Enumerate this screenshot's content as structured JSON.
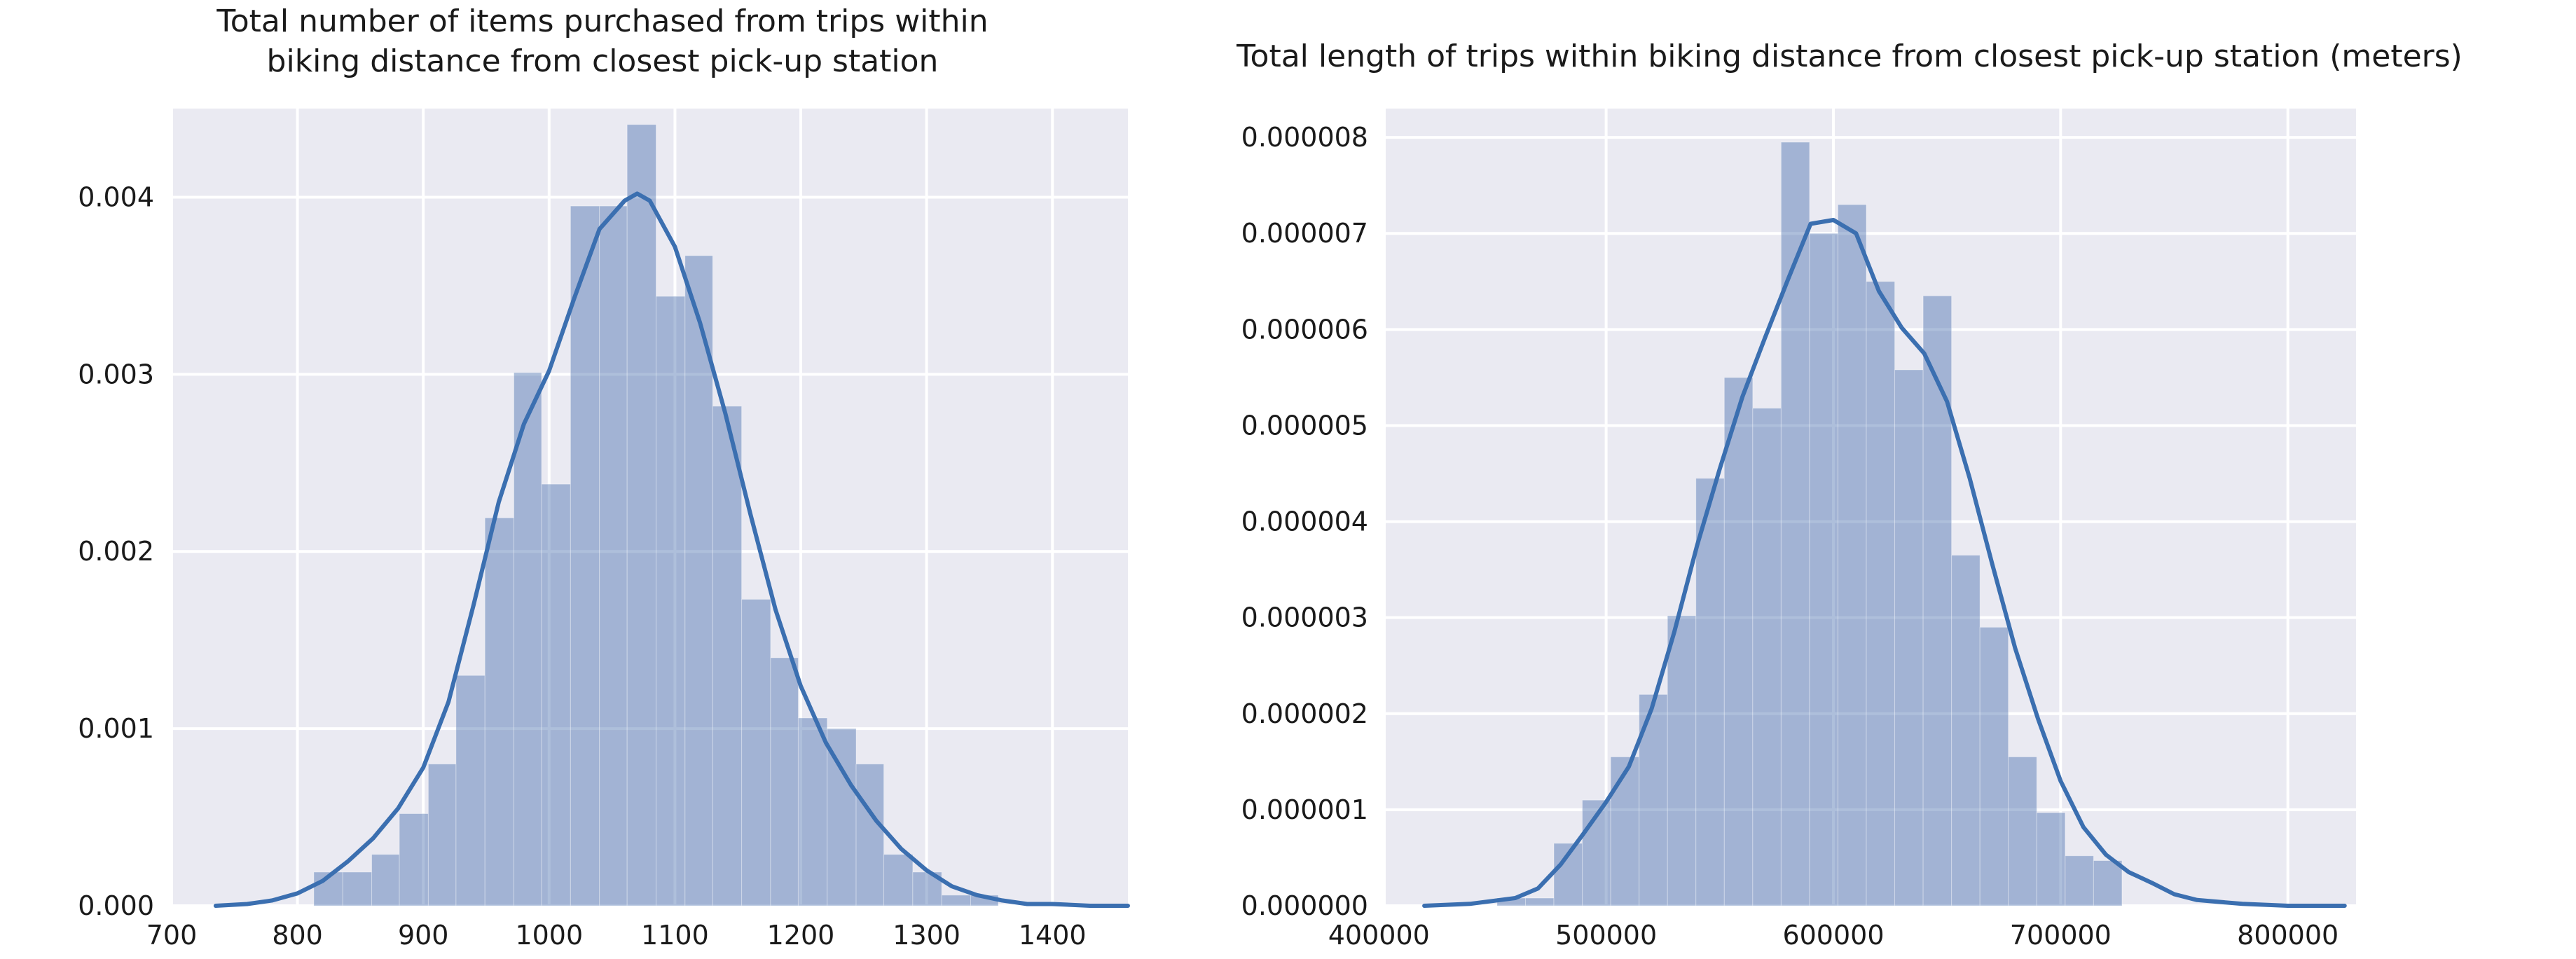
{
  "chart_data": [
    {
      "type": "histogram",
      "title": "Total number of items purchased from trips within\nbiking distance from closest pick-up station",
      "xlabel": "",
      "ylabel": "",
      "xlim": [
        700,
        1460
      ],
      "ylim": [
        0,
        0.0045
      ],
      "x_ticks": [
        700,
        800,
        900,
        1000,
        1100,
        1200,
        1300,
        1400
      ],
      "x_tick_labels": [
        "700",
        "800",
        "900",
        "1000",
        "1100",
        "1200",
        "1300",
        "1400"
      ],
      "y_ticks": [
        0,
        0.001,
        0.002,
        0.003,
        0.004
      ],
      "y_tick_labels": [
        "0.000",
        "0.001",
        "0.002",
        "0.003",
        "0.004"
      ],
      "grid": true,
      "colors": {
        "bar": "#4c72b0",
        "line": "#3b6fb0",
        "background": "#eaeaf2"
      },
      "bins": [
        {
          "x0": 813,
          "x1": 836,
          "density": 0.00019
        },
        {
          "x0": 836,
          "x1": 859,
          "density": 0.00019
        },
        {
          "x0": 859,
          "x1": 881,
          "density": 0.00029
        },
        {
          "x0": 881,
          "x1": 904,
          "density": 0.00052
        },
        {
          "x0": 904,
          "x1": 926,
          "density": 0.0008
        },
        {
          "x0": 926,
          "x1": 949,
          "density": 0.0013
        },
        {
          "x0": 949,
          "x1": 972,
          "density": 0.00219
        },
        {
          "x0": 972,
          "x1": 994,
          "density": 0.00301
        },
        {
          "x0": 994,
          "x1": 1017,
          "density": 0.00238
        },
        {
          "x0": 1017,
          "x1": 1040,
          "density": 0.00395
        },
        {
          "x0": 1040,
          "x1": 1062,
          "density": 0.00395
        },
        {
          "x0": 1062,
          "x1": 1085,
          "density": 0.00441
        },
        {
          "x0": 1085,
          "x1": 1108,
          "density": 0.00344
        },
        {
          "x0": 1108,
          "x1": 1130,
          "density": 0.00367
        },
        {
          "x0": 1130,
          "x1": 1153,
          "density": 0.00282
        },
        {
          "x0": 1153,
          "x1": 1176,
          "density": 0.00173
        },
        {
          "x0": 1176,
          "x1": 1198,
          "density": 0.0014
        },
        {
          "x0": 1198,
          "x1": 1221,
          "density": 0.00106
        },
        {
          "x0": 1221,
          "x1": 1244,
          "density": 0.001
        },
        {
          "x0": 1244,
          "x1": 1266,
          "density": 0.0008
        },
        {
          "x0": 1266,
          "x1": 1289,
          "density": 0.00029
        },
        {
          "x0": 1289,
          "x1": 1312,
          "density": 0.00019
        },
        {
          "x0": 1312,
          "x1": 1335,
          "density": 6e-05
        },
        {
          "x0": 1335,
          "x1": 1357,
          "density": 6e-05
        }
      ],
      "kde": {
        "x": [
          735,
          760,
          780,
          800,
          820,
          840,
          860,
          880,
          900,
          920,
          940,
          960,
          980,
          1000,
          1020,
          1040,
          1060,
          1070,
          1080,
          1100,
          1120,
          1140,
          1160,
          1180,
          1200,
          1220,
          1240,
          1260,
          1280,
          1300,
          1320,
          1340,
          1360,
          1380,
          1400,
          1430,
          1460
        ],
        "y": [
          0.0,
          1e-05,
          3e-05,
          7e-05,
          0.00014,
          0.00025,
          0.00038,
          0.00055,
          0.00078,
          0.00115,
          0.0017,
          0.00228,
          0.00272,
          0.00302,
          0.00343,
          0.00382,
          0.00398,
          0.00402,
          0.00398,
          0.00372,
          0.00329,
          0.00278,
          0.00221,
          0.00167,
          0.00124,
          0.00092,
          0.00068,
          0.00048,
          0.00032,
          0.0002,
          0.00011,
          6e-05,
          3e-05,
          1e-05,
          1e-05,
          0.0,
          0.0
        ]
      }
    },
    {
      "type": "histogram",
      "title": "Total length of trips within biking distance from closest pick-up station (meters)",
      "xlabel": "",
      "ylabel": "",
      "xlim": [
        403000,
        830000
      ],
      "ylim": [
        0,
        8.3e-06
      ],
      "x_ticks": [
        400000,
        500000,
        600000,
        700000,
        800000
      ],
      "x_tick_labels": [
        "400000",
        "500000",
        "600000",
        "700000",
        "800000"
      ],
      "y_ticks": [
        0,
        1e-06,
        2e-06,
        3e-06,
        4e-06,
        5e-06,
        6e-06,
        7e-06,
        8e-06
      ],
      "y_tick_labels": [
        "0.000000",
        "0.000001",
        "0.000002",
        "0.000003",
        "0.000004",
        "0.000005",
        "0.000006",
        "0.000007",
        "0.000008"
      ],
      "grid": true,
      "colors": {
        "bar": "#4c72b0",
        "line": "#3b6fb0",
        "background": "#eaeaf2"
      },
      "bins": [
        {
          "x0": 452000,
          "x1": 464500,
          "density": 8e-08
        },
        {
          "x0": 464500,
          "x1": 477000,
          "density": 8e-08
        },
        {
          "x0": 477000,
          "x1": 489500,
          "density": 6.5e-07
        },
        {
          "x0": 489500,
          "x1": 502000,
          "density": 1.1e-06
        },
        {
          "x0": 502000,
          "x1": 514500,
          "density": 1.55e-06
        },
        {
          "x0": 514500,
          "x1": 527000,
          "density": 2.2e-06
        },
        {
          "x0": 527000,
          "x1": 539500,
          "density": 3.02e-06
        },
        {
          "x0": 539500,
          "x1": 552000,
          "density": 4.45e-06
        },
        {
          "x0": 552000,
          "x1": 564500,
          "density": 5.5e-06
        },
        {
          "x0": 564500,
          "x1": 577000,
          "density": 5.18e-06
        },
        {
          "x0": 577000,
          "x1": 589500,
          "density": 7.95e-06
        },
        {
          "x0": 589500,
          "x1": 602000,
          "density": 7e-06
        },
        {
          "x0": 602000,
          "x1": 614500,
          "density": 7.3e-06
        },
        {
          "x0": 614500,
          "x1": 627000,
          "density": 6.5e-06
        },
        {
          "x0": 627000,
          "x1": 639500,
          "density": 5.58e-06
        },
        {
          "x0": 639500,
          "x1": 652000,
          "density": 6.35e-06
        },
        {
          "x0": 652000,
          "x1": 664500,
          "density": 3.65e-06
        },
        {
          "x0": 664500,
          "x1": 677000,
          "density": 2.9e-06
        },
        {
          "x0": 677000,
          "x1": 689500,
          "density": 1.55e-06
        },
        {
          "x0": 689500,
          "x1": 702000,
          "density": 9.7e-07
        },
        {
          "x0": 702000,
          "x1": 714500,
          "density": 5.2e-07
        },
        {
          "x0": 714500,
          "x1": 727000,
          "density": 4.7e-07
        },
        {
          "x0": 727000,
          "x1": 739500,
          "density": 0.0
        },
        {
          "x0": 739500,
          "x1": 752000,
          "density": 0.0
        }
      ],
      "kde": {
        "x": [
          420000,
          440000,
          460000,
          470000,
          480000,
          490000,
          500000,
          510000,
          520000,
          530000,
          540000,
          550000,
          560000,
          570000,
          580000,
          590000,
          600000,
          610000,
          620000,
          630000,
          640000,
          650000,
          660000,
          670000,
          680000,
          690000,
          700000,
          710000,
          720000,
          730000,
          740000,
          750000,
          760000,
          780000,
          800000,
          825000
        ],
        "y": [
          0.0,
          2e-08,
          8e-08,
          1.8e-07,
          4.3e-07,
          7.5e-07,
          1.08e-06,
          1.45e-06,
          2.05e-06,
          2.85e-06,
          3.75e-06,
          4.55e-06,
          5.3e-06,
          5.92e-06,
          6.52e-06,
          7.1e-06,
          7.14e-06,
          7e-06,
          6.4e-06,
          6.02e-06,
          5.75e-06,
          5.25e-06,
          4.45e-06,
          3.55e-06,
          2.68e-06,
          1.95e-06,
          1.3e-06,
          8.2e-07,
          5.3e-07,
          3.5e-07,
          2.4e-07,
          1.2e-07,
          6e-08,
          2e-08,
          0.0,
          0.0
        ]
      }
    }
  ]
}
